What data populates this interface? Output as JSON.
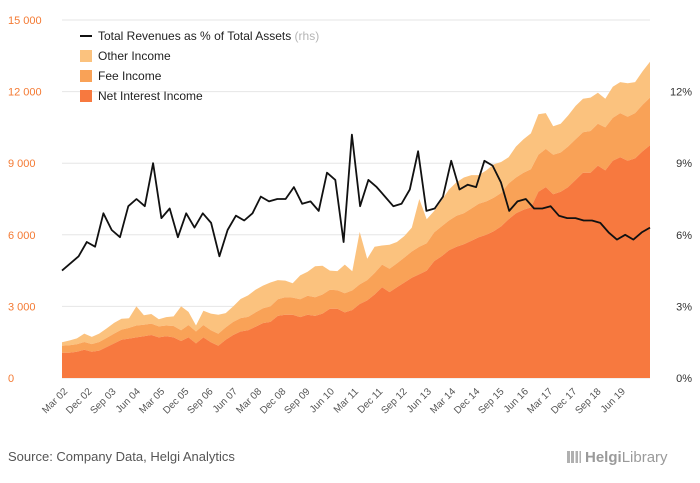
{
  "chart_data": {
    "type": "area",
    "legend": [
      {
        "name": "Total Revenues as % of Total Assets",
        "note": "(rhs)",
        "color": "#111111"
      },
      {
        "name": "Other Income",
        "color": "#fbc27e"
      },
      {
        "name": "Fee Income",
        "color": "#f9a257"
      },
      {
        "name": "Net Interest Income",
        "color": "#f7793f"
      }
    ],
    "y_left": {
      "ticks": [
        "0",
        "3 000",
        "6 000",
        "9 000",
        "12 000",
        "15 000"
      ],
      "min": 0,
      "max": 15000,
      "color": "#f47a33"
    },
    "y_right": {
      "ticks": [
        "0%",
        "3%",
        "6%",
        "9%",
        "12%"
      ],
      "min": 0,
      "max": 15
    },
    "x_labels": [
      "Mar 02",
      "Dec 02",
      "Sep 03",
      "Jun 04",
      "Mar 05",
      "Dec 05",
      "Sep 06",
      "Jun 07",
      "Mar 08",
      "Dec 08",
      "Sep 09",
      "Jun 10",
      "Mar 11",
      "Dec 11",
      "Sep 12",
      "Jun 13",
      "Mar 14",
      "Dec 14",
      "Sep 15",
      "Jun 16",
      "Mar 17",
      "Dec 17",
      "Sep 18",
      "Jun 19"
    ],
    "series": [
      {
        "name": "Net Interest Income",
        "values": [
          1050,
          1060,
          1100,
          1180,
          1100,
          1150,
          1300,
          1450,
          1600,
          1650,
          1700,
          1750,
          1800,
          1700,
          1750,
          1700,
          1550,
          1700,
          1450,
          1700,
          1500,
          1350,
          1600,
          1800,
          1950,
          2000,
          2150,
          2300,
          2350,
          2600,
          2650,
          2650,
          2550,
          2650,
          2600,
          2700,
          2900,
          2900,
          2750,
          2850,
          3100,
          3250,
          3500,
          3800,
          3600,
          3800,
          4000,
          4200,
          4350,
          4500,
          4900,
          5100,
          5350,
          5500,
          5600,
          5750,
          5900,
          6000,
          6150,
          6350,
          6650,
          6900,
          7050,
          7150,
          7800,
          8000,
          7700,
          7800,
          8000,
          8300,
          8600,
          8600,
          8900,
          8700,
          9100,
          9250,
          9100,
          9200,
          9500,
          9750
        ]
      },
      {
        "name": "Fee Income",
        "values": [
          300,
          310,
          310,
          330,
          320,
          360,
          380,
          410,
          430,
          450,
          500,
          480,
          480,
          460,
          450,
          480,
          450,
          520,
          500,
          520,
          500,
          500,
          520,
          550,
          560,
          560,
          600,
          620,
          650,
          700,
          730,
          720,
          750,
          800,
          780,
          800,
          800,
          780,
          800,
          820,
          820,
          850,
          900,
          950,
          980,
          1000,
          1050,
          1100,
          1150,
          1150,
          1200,
          1250,
          1250,
          1300,
          1300,
          1350,
          1400,
          1400,
          1400,
          1400,
          1500,
          1500,
          1550,
          1600,
          1550,
          1600,
          1650,
          1650,
          1700,
          1700,
          1700,
          1750,
          1750,
          1800,
          1800,
          1850,
          1850,
          1900,
          1950,
          2000
        ]
      },
      {
        "name": "Other Income",
        "values": [
          150,
          200,
          250,
          350,
          300,
          350,
          400,
          450,
          450,
          400,
          800,
          400,
          400,
          300,
          350,
          400,
          1000,
          550,
          250,
          600,
          700,
          800,
          600,
          650,
          800,
          900,
          950,
          950,
          1000,
          800,
          700,
          600,
          1000,
          1000,
          1300,
          1200,
          800,
          800,
          1200,
          800,
          2200,
          900,
          1100,
          800,
          1000,
          900,
          900,
          1000,
          2000,
          1000,
          900,
          1100,
          1300,
          1400,
          1500,
          1400,
          1200,
          1300,
          1400,
          1300,
          1100,
          1300,
          1400,
          1500,
          1700,
          1500,
          1200,
          1200,
          1300,
          1400,
          1400,
          1400,
          1300,
          1200,
          1300,
          1300,
          1400,
          1300,
          1400,
          1500
        ]
      },
      {
        "name": "Total Revenues as % of Total Assets",
        "axis": "right",
        "values": [
          4.5,
          4.8,
          5.1,
          5.7,
          5.5,
          6.9,
          6.2,
          5.9,
          7.2,
          7.5,
          7.2,
          9.0,
          6.7,
          7.1,
          5.9,
          6.9,
          6.3,
          6.9,
          6.5,
          5.1,
          6.2,
          6.8,
          6.6,
          6.9,
          7.6,
          7.4,
          7.5,
          7.5,
          8.0,
          7.3,
          7.4,
          7.0,
          8.6,
          8.3,
          5.7,
          10.2,
          7.2,
          8.3,
          8.0,
          7.6,
          7.2,
          7.3,
          7.9,
          9.5,
          7.0,
          7.1,
          7.6,
          9.1,
          7.9,
          8.1,
          8.0,
          9.1,
          8.9,
          8.2,
          7.0,
          7.4,
          7.5,
          7.1,
          7.1,
          7.2,
          6.8,
          6.7,
          6.7,
          6.6,
          6.6,
          6.5,
          6.1,
          5.8,
          6.0,
          5.8,
          6.1,
          6.3
        ]
      }
    ]
  },
  "footer": {
    "source": "Source: Company Data, Helgi Analytics",
    "brand_main": "Helgi",
    "brand_sub": "Library"
  }
}
